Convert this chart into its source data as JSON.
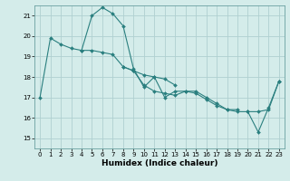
{
  "title": "",
  "xlabel": "Humidex (Indice chaleur)",
  "bg_color": "#d4ecea",
  "grid_color": "#b0d0d0",
  "line_color": "#2a7f7f",
  "xlim": [
    -0.5,
    23.5
  ],
  "ylim": [
    14.5,
    21.5
  ],
  "yticks": [
    15,
    16,
    17,
    18,
    19,
    20,
    21
  ],
  "xticks": [
    0,
    1,
    2,
    3,
    4,
    5,
    6,
    7,
    8,
    9,
    10,
    11,
    12,
    13,
    14,
    15,
    16,
    17,
    18,
    19,
    20,
    21,
    22,
    23
  ],
  "lines": [
    [
      17.0,
      19.9,
      19.6,
      19.4,
      19.3,
      21.0,
      21.4,
      21.1,
      20.5,
      18.4,
      17.5,
      18.0,
      17.0,
      17.3,
      17.3,
      17.3,
      17.0,
      16.7,
      16.4,
      16.3,
      16.3,
      15.3,
      16.5,
      17.8
    ],
    [
      null,
      null,
      null,
      null,
      19.3,
      19.3,
      19.2,
      19.1,
      18.5,
      18.3,
      18.1,
      18.0,
      17.9,
      17.6,
      null,
      null,
      null,
      null,
      null,
      null,
      null,
      null,
      null,
      null
    ],
    [
      null,
      null,
      null,
      null,
      null,
      null,
      null,
      null,
      18.5,
      18.3,
      17.6,
      17.3,
      17.2,
      17.1,
      17.3,
      17.2,
      16.9,
      16.6,
      16.4,
      16.4,
      null,
      null,
      null,
      null
    ],
    [
      null,
      null,
      null,
      null,
      null,
      null,
      null,
      null,
      null,
      null,
      null,
      null,
      null,
      null,
      null,
      null,
      null,
      null,
      null,
      null,
      16.3,
      16.3,
      16.4,
      17.8
    ]
  ]
}
